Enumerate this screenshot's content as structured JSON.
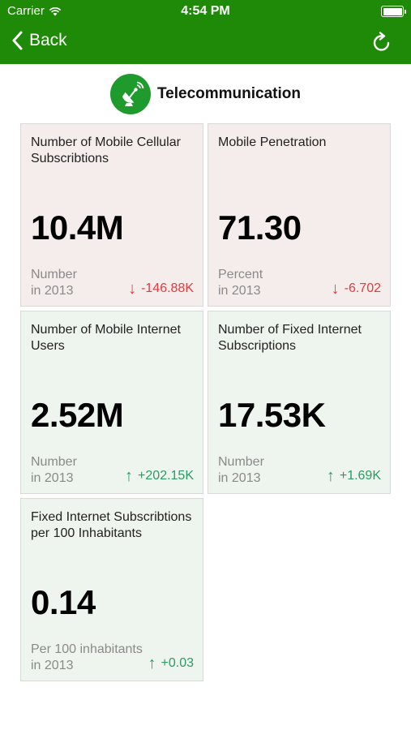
{
  "status_bar": {
    "carrier": "Carrier",
    "time": "4:54 PM"
  },
  "nav": {
    "back_label": "Back",
    "refresh_icon": "refresh-icon",
    "background": "#1f8a08"
  },
  "page": {
    "title": "Telecommunication",
    "icon": "satellite-dish-icon"
  },
  "cards": [
    {
      "title": "Number of Mobile Cellular Subscribtions",
      "value": "10.4M",
      "unit": "Number",
      "year": "in 2013",
      "change": "-146.88K",
      "direction": "down"
    },
    {
      "title": "Mobile Penetration",
      "value": "71.30",
      "unit": "Percent",
      "year": "in 2013",
      "change": "-6.702",
      "direction": "down"
    },
    {
      "title": "Number of Mobile Internet Users",
      "value": "2.52M",
      "unit": "Number",
      "year": "in 2013",
      "change": "+202.15K",
      "direction": "up"
    },
    {
      "title": "Number of Fixed Internet Subscriptions",
      "value": "17.53K",
      "unit": "Number",
      "year": "in 2013",
      "change": "+1.69K",
      "direction": "up"
    },
    {
      "title": "Fixed Internet Subscribtions per 100 Inhabitants",
      "value": "0.14",
      "unit": "Per 100 inhabitants",
      "year": "in 2013",
      "change": "+0.03",
      "direction": "up"
    }
  ],
  "colors": {
    "negative_card": "#f5ecec",
    "positive_card": "#eef5ee",
    "negative_text": "#e43b3b",
    "positive_text": "#2b9a64"
  }
}
